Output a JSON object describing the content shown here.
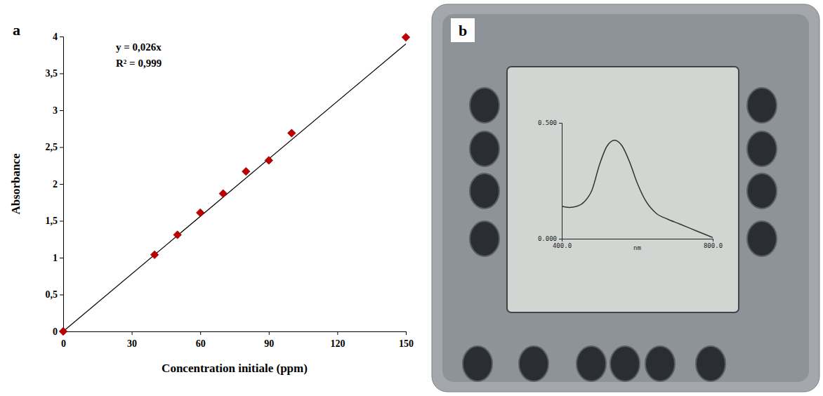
{
  "chart_data": [
    {
      "type": "scatter",
      "panel": "a",
      "x": [
        0,
        40,
        50,
        60,
        70,
        80,
        90,
        100,
        150
      ],
      "values": [
        0,
        1.04,
        1.31,
        1.61,
        1.87,
        2.17,
        2.32,
        2.69,
        3.99
      ],
      "color": "#c00000",
      "marker": "diamond",
      "xlabel": "Concentration initiale (ppm)",
      "ylabel": "Absorbance",
      "xlim": [
        0,
        150
      ],
      "ylim": [
        0,
        4
      ],
      "xticks": [
        0,
        30,
        60,
        90,
        120,
        150
      ],
      "yticks": [
        0,
        {
          "value": 0.5,
          "label": "0,5"
        },
        1,
        {
          "value": 1.5,
          "label": "1,5"
        },
        2,
        {
          "value": 2.5,
          "label": "2,5"
        },
        3,
        {
          "value": 3.5,
          "label": "3,5"
        },
        4
      ],
      "grid": false,
      "trendline": {
        "slope": 0.026,
        "equation": "y = 0,026x",
        "r2": 0.999,
        "r2_label": "R² = 0,999"
      }
    },
    {
      "type": "line",
      "panel": "b",
      "x": [
        400,
        420,
        440,
        460,
        480,
        500,
        520,
        540,
        560,
        580,
        600,
        620,
        650,
        680,
        710,
        740,
        770,
        800
      ],
      "values": [
        0.14,
        0.135,
        0.14,
        0.16,
        0.21,
        0.32,
        0.4,
        0.425,
        0.4,
        0.33,
        0.24,
        0.17,
        0.11,
        0.085,
        0.065,
        0.045,
        0.025,
        0.005
      ],
      "color": "#333333",
      "line_style": "solid",
      "xlabel": "nm",
      "xlim": [
        400,
        800
      ],
      "ylim": [
        0,
        0.5
      ],
      "xticks": [
        {
          "value": 400,
          "label": "400.0"
        },
        {
          "value": 800,
          "label": "800.0"
        }
      ],
      "yticks": [
        {
          "value": 0,
          "label": "0.000"
        },
        {
          "value": 0.5,
          "label": "0.500"
        }
      ],
      "grid": false
    }
  ]
}
